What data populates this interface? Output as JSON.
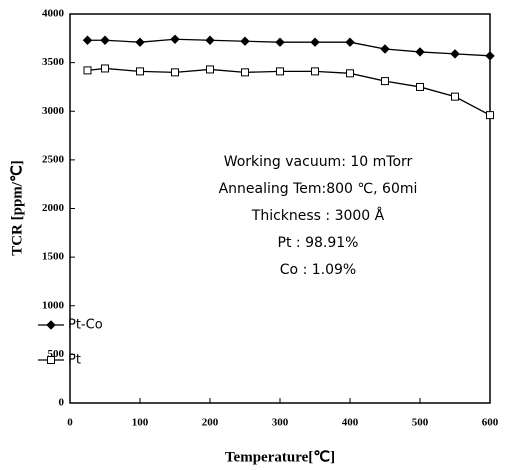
{
  "chart_data": {
    "type": "line",
    "x_label": "Temperature[℃]",
    "y_label": "TCR [ppm/℃]",
    "x": [
      25,
      50,
      100,
      150,
      200,
      250,
      300,
      350,
      400,
      450,
      500,
      550,
      600
    ],
    "series": [
      {
        "name": "Pt-Co",
        "color": "#000000",
        "marker": "diamond",
        "marker_filled": true,
        "values": [
          3730,
          3730,
          3710,
          3740,
          3730,
          3720,
          3710,
          3710,
          3710,
          3640,
          3610,
          3590,
          3570
        ]
      },
      {
        "name": "Pt",
        "color": "#000000",
        "marker": "square",
        "marker_filled": false,
        "values": [
          3420,
          3440,
          3410,
          3400,
          3430,
          3400,
          3410,
          3410,
          3390,
          3310,
          3250,
          3150,
          2960
        ]
      }
    ],
    "xlim": [
      0,
      600
    ],
    "xticks": [
      0,
      100,
      200,
      300,
      400,
      500,
      600
    ],
    "ylim": [
      0,
      4000
    ],
    "yticks": [
      0,
      500,
      1000,
      1500,
      2000,
      2500,
      3000,
      3500,
      4000
    ],
    "legend": "left",
    "annotations": [
      "Working vacuum: 10 mTorr",
      "Annealing Tem:800 ℃, 60mi",
      "Thickness : 3000 Å",
      "Pt : 98.91%",
      "Co : 1.09%"
    ]
  }
}
